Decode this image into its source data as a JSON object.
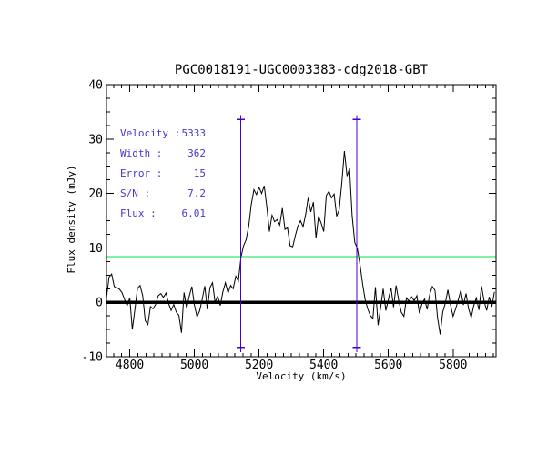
{
  "figure": {
    "background": "#ffffff",
    "frame_color": "#000000"
  },
  "chart_data": {
    "type": "line",
    "title": "PGC0018191-UGC0003383-cdg2018-GBT",
    "xlabel": "Velocity (km/s)",
    "ylabel": "Flux density (mJy)",
    "xlim": [
      4728,
      5933
    ],
    "ylim": [
      -10,
      40
    ],
    "xticks": [
      4800,
      5000,
      5200,
      5400,
      5600,
      5800
    ],
    "yticks": [
      -10,
      0,
      10,
      20,
      30,
      40
    ],
    "x_minor_step": 25,
    "y_minor_step": 2.5,
    "grid": false,
    "legend": null,
    "series": [
      {
        "name": "hi-spectrum",
        "color": "#000000",
        "x_start": 4728,
        "x_step": 8,
        "values": [
          0.8,
          4.6,
          5.2,
          2.9,
          2.7,
          2.4,
          1.8,
          0.5,
          -0.6,
          0.8,
          -5.0,
          -1.2,
          2.6,
          3.1,
          1.2,
          -3.4,
          -4.1,
          -0.8,
          -1.2,
          -0.4,
          1.2,
          1.6,
          0.9,
          1.7,
          -0.2,
          -1.5,
          -0.4,
          -1.8,
          -2.4,
          -5.6,
          1.8,
          -1.1,
          1.1,
          2.9,
          -0.5,
          -2.7,
          -1.6,
          0.5,
          3.0,
          -1.3,
          2.7,
          3.6,
          0.0,
          1.1,
          -0.6,
          1.9,
          3.6,
          1.7,
          3.1,
          2.5,
          4.8,
          3.9,
          8.3,
          10.4,
          11.5,
          14.0,
          18.0,
          20.7,
          19.8,
          21.1,
          20.0,
          21.4,
          17.5,
          13.0,
          16.0,
          14.8,
          15.2,
          14.2,
          17.3,
          13.4,
          13.7,
          10.4,
          10.2,
          12.2,
          14.0,
          15.0,
          13.9,
          16.1,
          19.2,
          16.6,
          18.4,
          11.8,
          15.8,
          14.6,
          13.0,
          19.6,
          20.4,
          19.2,
          19.9,
          15.8,
          17.0,
          22.0,
          27.8,
          23.2,
          24.6,
          15.9,
          11.0,
          9.9,
          7.0,
          3.5,
          0.6,
          -1.2,
          -2.4,
          -3.0,
          2.8,
          -4.2,
          -1.0,
          2.5,
          -1.5,
          0.5,
          2.7,
          -0.9,
          3.1,
          0.3,
          -1.8,
          -2.6,
          0.8,
          0.2,
          1.0,
          0.3,
          1.2,
          -2.0,
          -0.2,
          0.6,
          -1.3,
          1.5,
          2.9,
          2.2,
          -2.8,
          -5.9,
          -1.8,
          -0.2,
          2.3,
          -0.4,
          -2.6,
          -1.2,
          0.4,
          2.2,
          -0.5,
          1.6,
          -1.2,
          -2.8,
          -0.6,
          0.8,
          -1.4,
          3.0,
          0.2,
          -1.5,
          1.0,
          -0.8,
          1.9
        ]
      }
    ],
    "zero_line": {
      "y": 0,
      "color": "#000000",
      "width": 3.5
    },
    "threshold_line": {
      "y": 8.4,
      "color": "#00e550",
      "width": 1.3
    },
    "signal_markers": {
      "color": "#4400cc",
      "velocities": [
        5143,
        5502
      ],
      "y_bottom": -8.3,
      "y_top": 33.6,
      "cap": "plus"
    },
    "fit_parameters": {
      "color": "#4338cc",
      "rows": [
        {
          "label": "Velocity :",
          "value": "5333"
        },
        {
          "label": "Width :",
          "value": "362"
        },
        {
          "label": "Error :",
          "value": "15"
        },
        {
          "label": "S/N :",
          "value": "7.2"
        },
        {
          "label": "Flux :",
          "value": "6.01"
        }
      ]
    }
  }
}
